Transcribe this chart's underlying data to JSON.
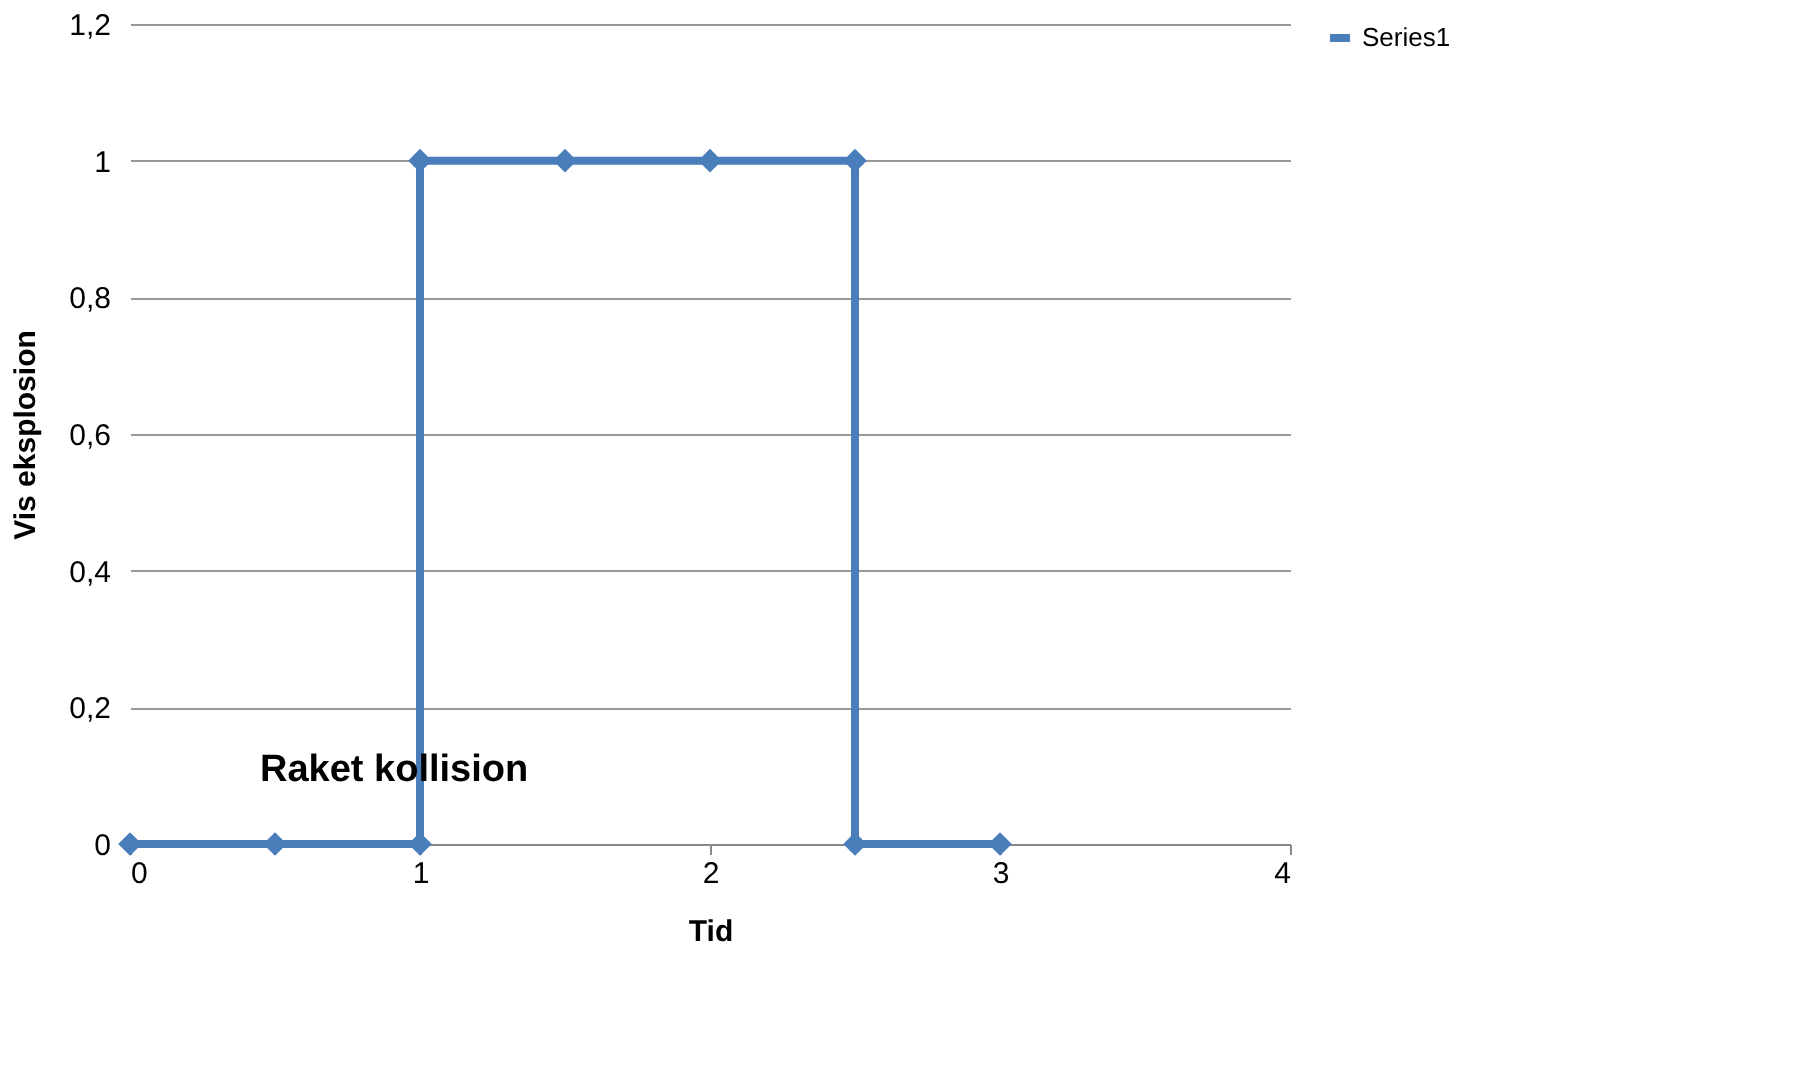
{
  "chart_data": {
    "type": "line",
    "xlabel": "Tid",
    "ylabel": "Vis eksplosion",
    "series": [
      {
        "name": "Series1",
        "color": "#4a7ebb",
        "x": [
          0,
          0.5,
          1,
          1,
          1.5,
          2,
          2.5,
          2.5,
          3
        ],
        "values": [
          0,
          0,
          0,
          1,
          1,
          1,
          1,
          0,
          0
        ]
      }
    ],
    "xlim": [
      0,
      4
    ],
    "xticks": [
      0,
      1,
      2,
      3,
      4
    ],
    "ylim": [
      0,
      1.2
    ],
    "yticks": [
      0,
      {
        "value": 0.2,
        "label": "0,2"
      },
      {
        "value": 0.4,
        "label": "0,4"
      },
      {
        "value": 0.6,
        "label": "0,6"
      },
      {
        "value": 0.8,
        "label": "0,8"
      },
      1,
      {
        "value": 1.2,
        "label": "1,2"
      }
    ],
    "grid": "y",
    "legend": "right",
    "marker": "diamond",
    "line_style": "solid",
    "annotations": [
      {
        "text": "Raket kollision",
        "x": 1,
        "y": 0.08
      }
    ]
  }
}
